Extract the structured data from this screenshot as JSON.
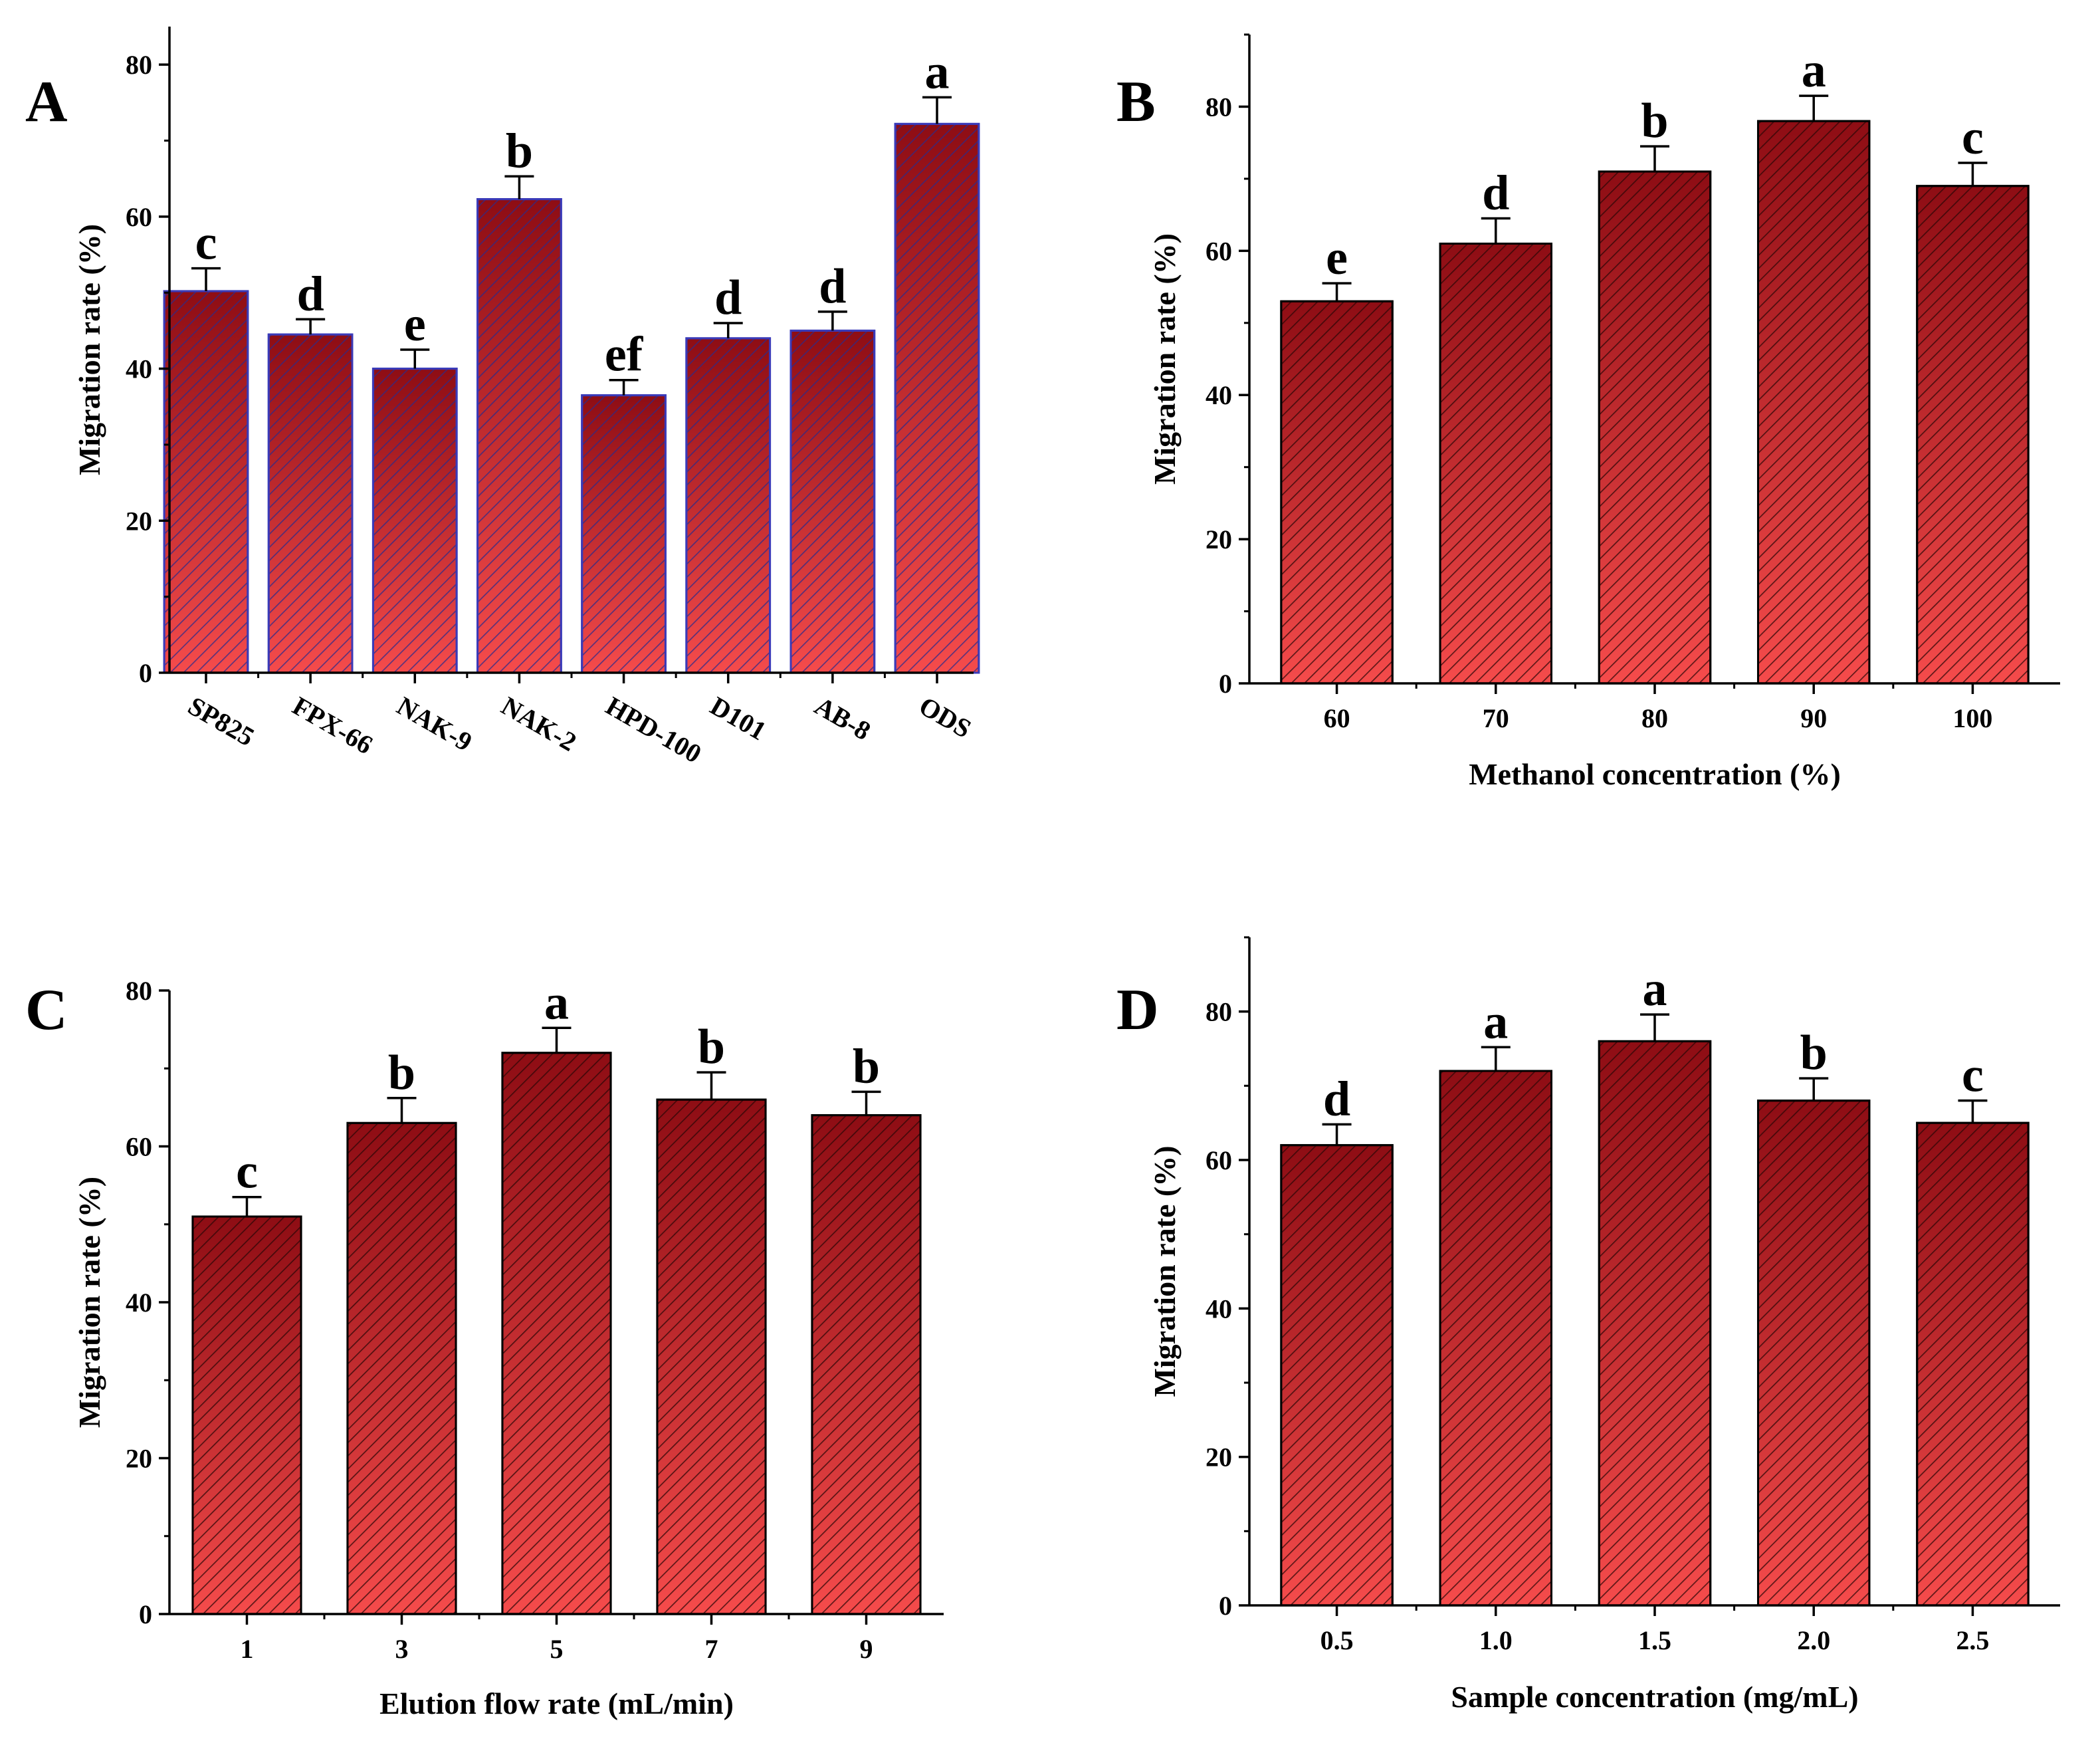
{
  "colors": {
    "bar_top": "#8e0d14",
    "bar_bottom": "#f54b4b",
    "hatch": "#2a0606",
    "hatch_panel_a": "#2a2a8a",
    "bar_outline_panel_a": "#3a3ab8",
    "axis": "#000000"
  },
  "chart_data": [
    {
      "type": "bar",
      "panel": "A",
      "categories": [
        "SP825",
        "FPX-66",
        "NAK-9",
        "NAK-2",
        "HPD-100",
        "D101",
        "AB-8",
        "ODS"
      ],
      "values": [
        50.2,
        44.5,
        40.0,
        62.3,
        36.5,
        44.0,
        45.0,
        72.2
      ],
      "errors": [
        3.0,
        2.0,
        2.5,
        3.0,
        2.0,
        2.0,
        2.5,
        3.5
      ],
      "significance": [
        "c",
        "d",
        "e",
        "b",
        "ef",
        "d",
        "d",
        "a"
      ],
      "ylabel": "Migration rate (%)",
      "xlabel": "",
      "ylim": [
        0,
        85
      ],
      "yticks": [
        0,
        20,
        40,
        60,
        80
      ],
      "grid": false,
      "rotated_ticks": true
    },
    {
      "type": "bar",
      "panel": "B",
      "categories": [
        "60",
        "70",
        "80",
        "90",
        "100"
      ],
      "values": [
        53,
        61,
        71,
        78,
        69
      ],
      "errors": [
        2.5,
        3.5,
        3.5,
        3.5,
        3.2
      ],
      "significance": [
        "e",
        "d",
        "b",
        "a",
        "c"
      ],
      "ylabel": "Migration rate (%)",
      "xlabel": "Methanol concentration (%)",
      "ylim": [
        0,
        90
      ],
      "yticks": [
        0,
        20,
        40,
        60,
        80
      ],
      "grid": false,
      "rotated_ticks": false
    },
    {
      "type": "bar",
      "panel": "C",
      "categories": [
        "1",
        "3",
        "5",
        "7",
        "9"
      ],
      "values": [
        51,
        63,
        72,
        66,
        64
      ],
      "errors": [
        2.5,
        3.2,
        3.2,
        3.5,
        3.0
      ],
      "significance": [
        "c",
        "b",
        "a",
        "b",
        "b"
      ],
      "ylabel": "Migration rate (%)",
      "xlabel": "Elution flow rate (mL/min)",
      "ylim": [
        0,
        80
      ],
      "yticks": [
        0,
        20,
        40,
        60,
        80
      ],
      "grid": false,
      "rotated_ticks": false
    },
    {
      "type": "bar",
      "panel": "D",
      "categories": [
        "0.5",
        "1.0",
        "1.5",
        "2.0",
        "2.5"
      ],
      "values": [
        62,
        72,
        76,
        68,
        65
      ],
      "errors": [
        2.8,
        3.2,
        3.6,
        3.0,
        3.0
      ],
      "significance": [
        "d",
        "a",
        "a",
        "b",
        "c"
      ],
      "ylabel": "Migration rate (%)",
      "xlabel": "Sample concentration (mg/mL)",
      "ylim": [
        0,
        90
      ],
      "yticks": [
        0,
        20,
        40,
        60,
        80
      ],
      "grid": false,
      "rotated_ticks": false
    }
  ]
}
